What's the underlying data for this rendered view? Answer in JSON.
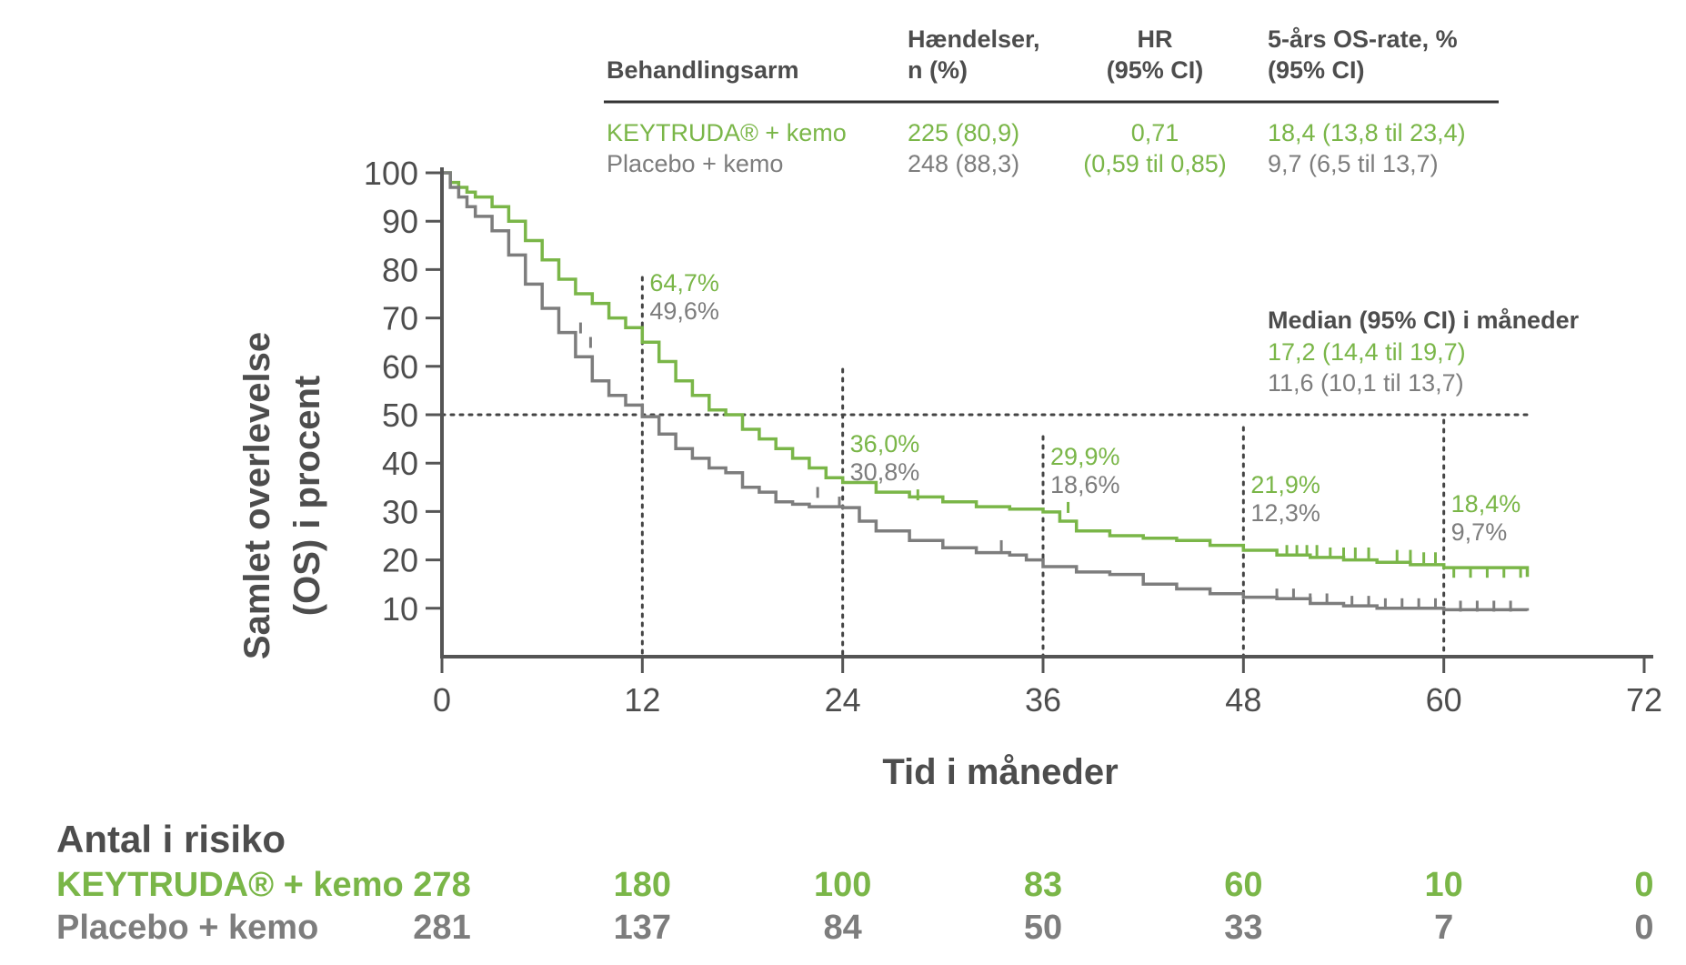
{
  "colors": {
    "keytruda": "#7ab648",
    "placebo": "#7d7d7d",
    "text": "#4d4d4d",
    "axis": "#555555"
  },
  "header_table": {
    "col_arm_header": "Behandlingsarm",
    "col_events_header": [
      "Hændelser,",
      "n (%)"
    ],
    "col_hr_header": [
      "HR",
      "(95% CI)"
    ],
    "col_os_header": [
      "5-års OS-rate, %",
      "(95% CI)"
    ],
    "rows": [
      {
        "arm": "KEYTRUDA® + kemo",
        "events": "225 (80,9)",
        "os5": "18,4 (13,8 til 23,4)"
      },
      {
        "arm": "Placebo + kemo",
        "events": "248 (88,3)",
        "os5": "9,7 (6,5 til 13,7)"
      }
    ],
    "hr_value": "0,71",
    "hr_ci": "(0,59 til 0,85)"
  },
  "median_box": {
    "title": "Median (95% CI) i måneder",
    "keytruda": "17,2 (14,4 til 19,7)",
    "placebo": "11,6 (10,1 til 13,7)"
  },
  "at_risk": {
    "title": "Antal i risiko",
    "keytruda_label": "KEYTRUDA® + kemo",
    "placebo_label": "Placebo + kemo",
    "times": [
      0,
      12,
      24,
      36,
      48,
      60,
      72
    ],
    "keytruda": [
      278,
      180,
      100,
      83,
      60,
      10,
      0
    ],
    "placebo": [
      281,
      137,
      84,
      50,
      33,
      7,
      0
    ]
  },
  "chart_data": {
    "type": "line",
    "subtype": "kaplan-meier-step",
    "xlabel": "Tid i måneder",
    "ylabel": [
      "Samlet overlevelse",
      "(OS) i procent"
    ],
    "xlim": [
      0,
      72
    ],
    "ylim": [
      0,
      100
    ],
    "xticks": [
      0,
      12,
      24,
      36,
      48,
      60,
      72
    ],
    "yticks": [
      10,
      20,
      30,
      40,
      50,
      60,
      70,
      80,
      90,
      100
    ],
    "median_line_y": 50,
    "landmark_times": [
      12,
      24,
      36,
      48,
      60
    ],
    "landmark_labels": [
      {
        "time": 12,
        "keytruda": "64,7%",
        "placebo": "49,6%"
      },
      {
        "time": 24,
        "keytruda": "36,0%",
        "placebo": "30,8%"
      },
      {
        "time": 36,
        "keytruda": "29,9%",
        "placebo": "18,6%"
      },
      {
        "time": 48,
        "keytruda": "21,9%",
        "placebo": "12,3%"
      },
      {
        "time": 60,
        "keytruda": "18,4%",
        "placebo": "9,7%"
      }
    ],
    "series": [
      {
        "name": "KEYTRUDA® + kemo",
        "color": "#7ab648",
        "x": [
          0,
          0.5,
          1,
          1.5,
          2,
          3,
          4,
          5,
          6,
          7,
          8,
          9,
          10,
          11,
          12,
          13,
          14,
          15,
          16,
          17,
          18,
          19,
          20,
          21,
          22,
          23,
          24,
          26,
          28,
          30,
          32,
          34,
          36,
          37,
          38,
          40,
          42,
          44,
          46,
          48,
          50,
          52,
          54,
          56,
          58,
          60,
          65
        ],
        "y": [
          100,
          98,
          97,
          96,
          95,
          93,
          90,
          86,
          82,
          78,
          75,
          73,
          70,
          68,
          65,
          61,
          57,
          54,
          51,
          50,
          47,
          45,
          43,
          41,
          39,
          37,
          36,
          34,
          33,
          32,
          31,
          30.5,
          29.9,
          28,
          26,
          25,
          24.5,
          24,
          23,
          22,
          21,
          20.5,
          20,
          19.5,
          19,
          18.4,
          16.5
        ],
        "censor_x": [
          28.5,
          37.5,
          50.6,
          51.2,
          51.8,
          52.4,
          53.2,
          54,
          54.7,
          55.5,
          57.2,
          58,
          58.8,
          59.5,
          60.6,
          61.6,
          62.6,
          63.6,
          64.6
        ],
        "censor_y": [
          32.5,
          29.9,
          21,
          21,
          21,
          21,
          20.5,
          20.5,
          20.5,
          20.5,
          20,
          20,
          19.5,
          19.5,
          16.5,
          16.5,
          16.5,
          16.5,
          16.5
        ]
      },
      {
        "name": "Placebo + kemo",
        "color": "#7d7d7d",
        "x": [
          0,
          0.5,
          1,
          1.5,
          2,
          3,
          4,
          5,
          6,
          7,
          8,
          9,
          10,
          11,
          12,
          13,
          14,
          15,
          16,
          17,
          18,
          19,
          20,
          21,
          22,
          23,
          24,
          25,
          26,
          28,
          30,
          32,
          34,
          35,
          36,
          38,
          40,
          42,
          44,
          46,
          48,
          50,
          52,
          54,
          56,
          58,
          60,
          65
        ],
        "y": [
          100,
          97,
          95,
          93,
          91,
          88,
          83,
          77,
          72,
          67,
          62,
          57,
          54,
          52,
          49.6,
          46,
          43,
          41,
          39,
          38,
          35,
          34,
          32,
          31.5,
          31,
          31,
          30.8,
          28,
          26,
          24,
          22.5,
          21.5,
          21,
          20,
          18.6,
          17.5,
          17,
          15,
          14,
          13,
          12.3,
          12,
          11,
          10.5,
          10,
          10,
          9.7,
          9.5
        ],
        "censor_x": [
          8.3,
          8.9,
          22.5,
          23.8,
          33.5,
          50,
          51,
          52,
          53,
          54.5,
          55.5,
          56.5,
          57.5,
          58.5,
          59.5,
          61,
          62,
          63,
          64
        ],
        "censor_y": [
          67,
          64,
          33,
          31,
          22,
          12,
          12,
          11,
          11,
          10.5,
          10.5,
          10,
          10,
          10,
          10,
          9.5,
          9.5,
          9.5,
          9.5
        ]
      }
    ]
  }
}
